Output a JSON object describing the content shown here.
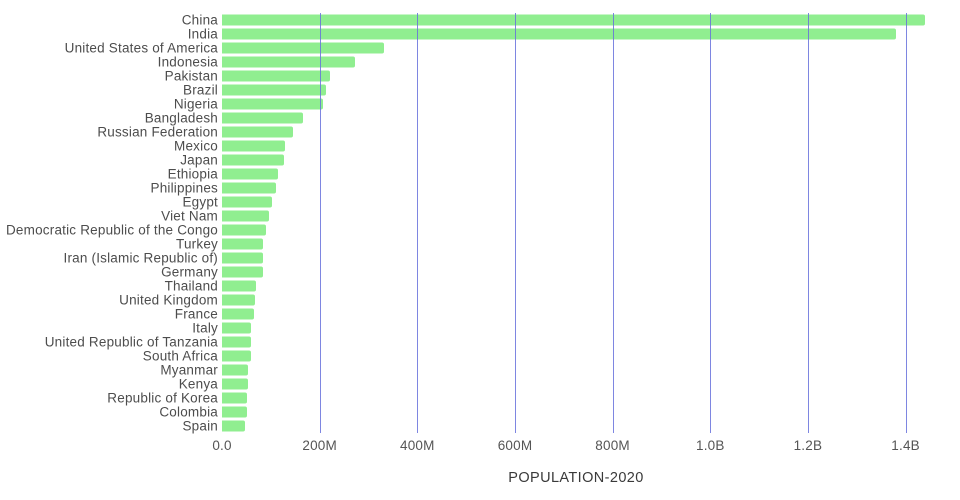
{
  "chart_data": {
    "type": "bar",
    "orientation": "horizontal",
    "title": "",
    "xlabel": "POPULATION-2020",
    "ylabel": "",
    "categories": [
      "China",
      "India",
      "United States of America",
      "Indonesia",
      "Pakistan",
      "Brazil",
      "Nigeria",
      "Bangladesh",
      "Russian Federation",
      "Mexico",
      "Japan",
      "Ethiopia",
      "Philippines",
      "Egypt",
      "Viet Nam",
      "Democratic Republic of the Congo",
      "Turkey",
      "Iran (Islamic Republic of)",
      "Germany",
      "Thailand",
      "United Kingdom",
      "France",
      "Italy",
      "United Republic of Tanzania",
      "South Africa",
      "Myanmar",
      "Kenya",
      "Republic of Korea",
      "Colombia",
      "Spain"
    ],
    "values_millions": [
      1439,
      1380,
      331,
      273,
      221,
      212,
      206,
      165,
      146,
      129,
      126,
      115,
      110,
      102,
      97,
      90,
      84,
      84,
      84,
      70,
      68,
      65,
      60,
      60,
      59,
      54,
      54,
      51,
      51,
      47
    ],
    "x_max_millions": 1450,
    "x_ticks": [
      {
        "value": 0,
        "label": "0.0"
      },
      {
        "value": 200,
        "label": "200M"
      },
      {
        "value": 400,
        "label": "400M"
      },
      {
        "value": 600,
        "label": "600M"
      },
      {
        "value": 800,
        "label": "800M"
      },
      {
        "value": 1000,
        "label": "1.0B"
      },
      {
        "value": 1200,
        "label": "1.2B"
      },
      {
        "value": 1400,
        "label": "1.4B"
      }
    ],
    "grid": true,
    "legend": "none",
    "colors": {
      "bar": "#90ee90",
      "gridline": "#6771dc",
      "label_text": "#4d4d4d",
      "tick_text": "#555555",
      "axis_title_text": "#3a3a3a",
      "background": "#ffffff"
    }
  }
}
